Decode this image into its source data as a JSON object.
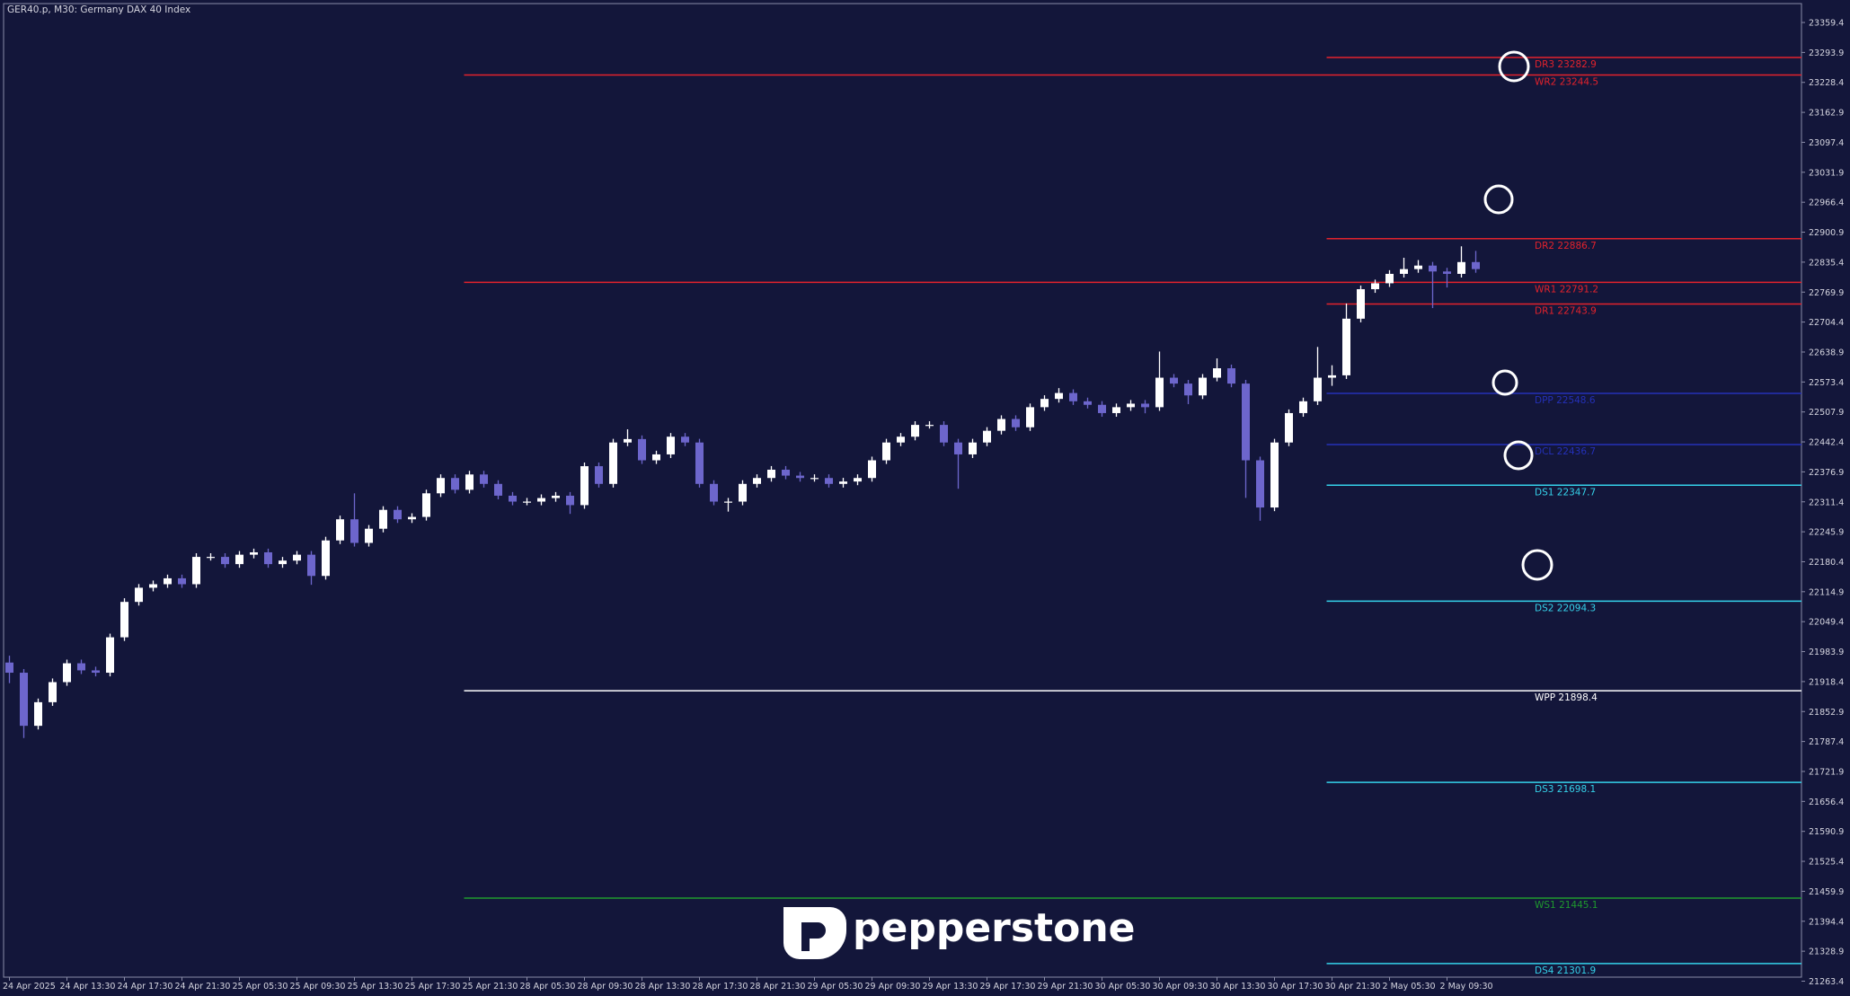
{
  "chart_data": {
    "type": "candlestick",
    "title": "GER40.p, M30:  Germany DAX 40 Index",
    "brand": "pepperstone",
    "up_color": "#ffffff",
    "down_color": "#6d66cc",
    "categories": [
      "24 Apr 2025",
      null,
      null,
      null,
      "24 Apr 13:30",
      null,
      null,
      null,
      "24 Apr 17:30",
      null,
      null,
      null,
      "24 Apr 21:30",
      null,
      null,
      null,
      "25 Apr 05:30",
      null,
      null,
      null,
      "25 Apr 09:30",
      null,
      null,
      null,
      "25 Apr 13:30",
      null,
      null,
      null,
      "25 Apr 17:30",
      null,
      null,
      null,
      "25 Apr 21:30",
      null,
      null,
      null,
      "28 Apr 05:30",
      null,
      null,
      null,
      "28 Apr 09:30",
      null,
      null,
      null,
      "28 Apr 13:30",
      null,
      null,
      null,
      "28 Apr 17:30",
      null,
      null,
      null,
      "28 Apr 21:30",
      null,
      null,
      null,
      "29 Apr 05:30",
      null,
      null,
      null,
      "29 Apr 09:30",
      null,
      null,
      null,
      "29 Apr 13:30",
      null,
      null,
      null,
      "29 Apr 17:30",
      null,
      null,
      null,
      "29 Apr 21:30",
      null,
      null,
      null,
      "30 Apr 05:30",
      null,
      null,
      null,
      "30 Apr 09:30",
      null,
      null,
      null,
      "30 Apr 13:30",
      null,
      null,
      null,
      "30 Apr 17:30",
      null,
      null,
      null,
      "30 Apr 21:30",
      null,
      null,
      null,
      "2 May 05:30",
      null,
      null,
      null,
      "2 May 09:30",
      null,
      null
    ],
    "candles": [
      [
        21960.0,
        21975.0,
        21915.0,
        21937.8
      ],
      [
        21937.8,
        21945.8,
        21795.0,
        21821.7
      ],
      [
        21821.7,
        21881.3,
        21813.7,
        21873.3
      ],
      [
        21873.3,
        21925.2,
        21865.3,
        21917.2
      ],
      [
        21917.2,
        21966.4,
        21909.2,
        21958.4
      ],
      [
        21958.4,
        21966.4,
        21934.9,
        21942.9
      ],
      [
        21942.9,
        21950.9,
        21929.8,
        21937.8
      ],
      [
        21937.8,
        22023.2,
        21929.8,
        22015.2
      ],
      [
        22015.2,
        22100.6,
        22007.2,
        22092.6
      ],
      [
        22092.6,
        22131.6,
        22084.6,
        22123.6
      ],
      [
        22123.6,
        22139.3,
        22115.6,
        22131.3
      ],
      [
        22131.3,
        22152.2,
        22123.3,
        22144.2
      ],
      [
        22144.2,
        22152.2,
        22123.3,
        22131.3
      ],
      [
        22131.3,
        22199.0,
        22123.3,
        22191.0
      ],
      [
        22191.0,
        22199.0,
        22183.0,
        22191.0
      ],
      [
        22191.0,
        22199.0,
        22167.2,
        22175.2
      ],
      [
        22175.2,
        22203.8,
        22167.2,
        22195.8
      ],
      [
        22195.8,
        22209.0,
        22187.8,
        22201.0
      ],
      [
        22201.0,
        22209.0,
        22167.2,
        22175.2
      ],
      [
        22175.2,
        22190.9,
        22167.2,
        22182.9
      ],
      [
        22182.9,
        22203.8,
        22174.9,
        22195.8
      ],
      [
        22195.8,
        22203.8,
        22130.0,
        22149.4
      ],
      [
        22149.4,
        22235.0,
        22141.4,
        22227.0
      ],
      [
        22227.0,
        22281.2,
        22219.0,
        22273.2
      ],
      [
        22273.2,
        22330.0,
        22213.6,
        22221.6
      ],
      [
        22221.6,
        22260.6,
        22213.6,
        22252.6
      ],
      [
        22252.6,
        22301.8,
        22244.6,
        22293.8
      ],
      [
        22293.8,
        22301.8,
        22265.2,
        22273.2
      ],
      [
        22273.2,
        22286.4,
        22265.2,
        22278.4
      ],
      [
        22278.4,
        22338.0,
        22270.4,
        22330.0
      ],
      [
        22330.0,
        22371.5,
        22322.0,
        22363.5
      ],
      [
        22363.5,
        22371.5,
        22329.7,
        22337.7
      ],
      [
        22337.7,
        22379.2,
        22329.7,
        22371.2
      ],
      [
        22371.2,
        22379.2,
        22342.6,
        22350.6
      ],
      [
        22350.6,
        22358.6,
        22316.8,
        22324.8
      ],
      [
        22324.8,
        22332.8,
        22303.9,
        22311.9
      ],
      [
        22311.9,
        22319.9,
        22303.9,
        22311.9
      ],
      [
        22311.9,
        22327.6,
        22303.9,
        22319.6
      ],
      [
        22319.6,
        22332.8,
        22311.6,
        22324.8
      ],
      [
        22324.8,
        22332.8,
        22285.0,
        22304.2
      ],
      [
        22304.2,
        22397.3,
        22296.2,
        22389.3
      ],
      [
        22389.3,
        22397.3,
        22342.6,
        22350.6
      ],
      [
        22350.6,
        22449.1,
        22342.6,
        22441.1
      ],
      [
        22441.1,
        22470.0,
        22433.1,
        22448.6
      ],
      [
        22448.6,
        22456.6,
        22394.2,
        22402.2
      ],
      [
        22402.2,
        22423.1,
        22394.2,
        22415.1
      ],
      [
        22415.1,
        22461.8,
        22407.1,
        22453.8
      ],
      [
        22453.8,
        22461.8,
        22433.1,
        22441.1
      ],
      [
        22441.1,
        22449.1,
        22342.6,
        22350.6
      ],
      [
        22350.6,
        22358.6,
        22303.9,
        22311.9
      ],
      [
        22311.9,
        22319.9,
        22290.0,
        22311.9
      ],
      [
        22311.9,
        22358.6,
        22303.9,
        22350.6
      ],
      [
        22350.6,
        22371.5,
        22342.6,
        22363.5
      ],
      [
        22363.5,
        22389.6,
        22355.5,
        22381.6
      ],
      [
        22381.6,
        22389.6,
        22360.7,
        22368.7
      ],
      [
        22368.7,
        22376.7,
        22355.5,
        22363.5
      ],
      [
        22363.5,
        22371.5,
        22355.5,
        22363.5
      ],
      [
        22363.5,
        22371.5,
        22342.6,
        22350.6
      ],
      [
        22350.6,
        22363.8,
        22342.6,
        22355.8
      ],
      [
        22355.8,
        22371.5,
        22347.8,
        22363.5
      ],
      [
        22363.5,
        22410.2,
        22355.5,
        22402.2
      ],
      [
        22402.2,
        22449.1,
        22394.2,
        22441.1
      ],
      [
        22441.1,
        22461.8,
        22433.1,
        22453.8
      ],
      [
        22453.8,
        22487.6,
        22445.8,
        22479.6
      ],
      [
        22479.6,
        22487.6,
        22471.6,
        22479.6
      ],
      [
        22479.6,
        22487.6,
        22433.1,
        22441.1
      ],
      [
        22441.1,
        22449.1,
        22340.0,
        22415.1
      ],
      [
        22415.1,
        22449.1,
        22407.1,
        22441.1
      ],
      [
        22441.1,
        22474.7,
        22433.1,
        22466.7
      ],
      [
        22466.7,
        22500.5,
        22458.7,
        22492.5
      ],
      [
        22492.5,
        22500.5,
        22466.4,
        22474.4
      ],
      [
        22474.4,
        22526.3,
        22466.4,
        22518.3
      ],
      [
        22518.3,
        22544.4,
        22510.3,
        22536.4
      ],
      [
        22536.4,
        22560.0,
        22528.4,
        22549.3
      ],
      [
        22549.3,
        22557.3,
        22523.2,
        22531.2
      ],
      [
        22531.2,
        22539.2,
        22515.5,
        22523.5
      ],
      [
        22523.5,
        22531.5,
        22497.4,
        22505.4
      ],
      [
        22505.4,
        22526.3,
        22497.4,
        22518.3
      ],
      [
        22518.3,
        22534.0,
        22510.3,
        22526.0
      ],
      [
        22526.0,
        22534.0,
        22505.0,
        22518.3
      ],
      [
        22518.3,
        22640.0,
        22510.3,
        22582.8
      ],
      [
        22582.8,
        22590.8,
        22561.9,
        22569.9
      ],
      [
        22569.9,
        22577.9,
        22525.0,
        22544.1
      ],
      [
        22544.1,
        22590.8,
        22536.1,
        22582.8
      ],
      [
        22582.8,
        22625.0,
        22574.8,
        22603.4
      ],
      [
        22603.4,
        22611.4,
        22561.9,
        22569.9
      ],
      [
        22569.9,
        22577.9,
        22320.0,
        22402.2
      ],
      [
        22402.2,
        22410.2,
        22270.0,
        22299.0
      ],
      [
        22299.0,
        22449.1,
        22291.0,
        22441.1
      ],
      [
        22441.1,
        22513.4,
        22433.1,
        22505.4
      ],
      [
        22505.4,
        22539.2,
        22497.4,
        22531.2
      ],
      [
        22531.2,
        22650.0,
        22523.2,
        22582.8
      ],
      [
        22582.8,
        22610.0,
        22565.0,
        22588.0
      ],
      [
        22588.0,
        22745.0,
        22580.0,
        22711.8
      ],
      [
        22711.8,
        22784.3,
        22703.8,
        22776.3
      ],
      [
        22776.3,
        22797.2,
        22768.3,
        22789.2
      ],
      [
        22789.2,
        22817.8,
        22781.2,
        22809.8
      ],
      [
        22809.8,
        22845.0,
        22801.8,
        22820.2
      ],
      [
        22820.2,
        22840.0,
        22812.2,
        22827.9
      ],
      [
        22827.9,
        22835.9,
        22735.0,
        22815.0
      ],
      [
        22815.0,
        22823.0,
        22780.0,
        22809.8
      ],
      [
        22809.8,
        22870.0,
        22801.8,
        22835.6
      ],
      [
        22835.6,
        22860.0,
        22812.2,
        22820.2
      ]
    ],
    "ylim": [
      21272.2,
      23400.7
    ],
    "yticks": [
      23359.4,
      23293.9,
      23228.4,
      23162.9,
      23097.4,
      23031.9,
      22966.4,
      22900.9,
      22835.4,
      22769.9,
      22704.4,
      22638.9,
      22573.4,
      22507.9,
      22442.4,
      22376.9,
      22311.4,
      22245.9,
      22180.4,
      22114.9,
      22049.4,
      21983.9,
      21918.4,
      21852.9,
      21787.4,
      21721.9,
      21656.4,
      21590.9,
      21525.4,
      21459.9,
      21394.4,
      21328.9,
      21263.4
    ],
    "levels": [
      {
        "label": "DR3 23282.9",
        "value": 23282.9,
        "color": "#e3222c"
      },
      {
        "label": "WR2 23244.5",
        "value": 23244.5,
        "color": "#e3222c"
      },
      {
        "label": "DR2 22886.7",
        "value": 22886.7,
        "color": "#e3222c"
      },
      {
        "label": "WR1 22791.2",
        "value": 22791.2,
        "color": "#e3222c"
      },
      {
        "label": "DR1 22743.9",
        "value": 22743.9,
        "color": "#e3222c"
      },
      {
        "label": "DPP 22548.6",
        "value": 22548.6,
        "color": "#2430b8"
      },
      {
        "label": "DCL 22436.7",
        "value": 22436.7,
        "color": "#2430b8"
      },
      {
        "label": "DS1 22347.7",
        "value": 22347.7,
        "color": "#35d2ea"
      },
      {
        "label": "DS2 22094.3",
        "value": 22094.3,
        "color": "#35d2ea"
      },
      {
        "label": "WPP 21898.4",
        "value": 21898.4,
        "color": "#ffffff"
      },
      {
        "label": "DS3 21698.1",
        "value": 21698.1,
        "color": "#35d2ea"
      },
      {
        "label": "WS1 21445.1",
        "value": 21445.1,
        "color": "#1f9a2e"
      },
      {
        "label": "DS4 21301.9",
        "value": 21301.9,
        "color": "#35d2ea"
      }
    ]
  }
}
